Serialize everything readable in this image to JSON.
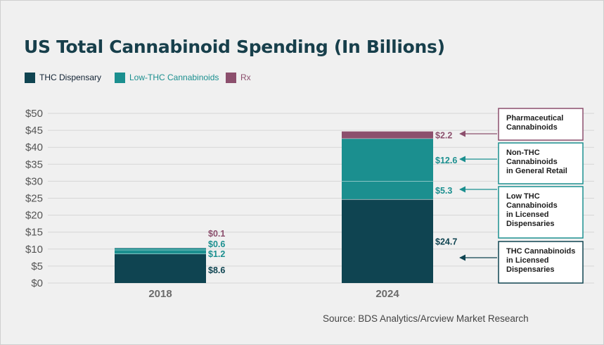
{
  "chart_data": {
    "type": "bar",
    "stacked": true,
    "title": "US Total Cannabinoid Spending (In Billions)",
    "source": "Source: BDS Analytics/Arcview Market Research",
    "categories": [
      "2018",
      "2024"
    ],
    "series": [
      {
        "name": "THC Dispensary",
        "color": "#0f4451",
        "values": [
          8.6,
          24.7
        ],
        "labels": [
          "$8.6",
          "$24.7"
        ]
      },
      {
        "name": "Low-THC Cannabinoids",
        "color": "#1b8f8f",
        "values": [
          1.2,
          5.3
        ],
        "labels": [
          "$1.2",
          "$5.3"
        ]
      },
      {
        "name": "Non-THC Cannabinoids",
        "color": "#1b8f8f",
        "values": [
          0.6,
          12.6
        ],
        "labels": [
          "$0.6",
          "$12.6"
        ]
      },
      {
        "name": "Rx",
        "color": "#8c4f6d",
        "values": [
          0.1,
          2.2
        ],
        "labels": [
          "$0.1",
          "$2.2"
        ]
      }
    ],
    "legend": [
      {
        "name": "THC Dispensary",
        "color": "#0f4451"
      },
      {
        "name": "Low-THC Cannabinoids",
        "color": "#1b8f8f"
      },
      {
        "name": "Rx",
        "color": "#8c4f6d"
      }
    ],
    "ylim": [
      0,
      50
    ],
    "yticks": [
      0,
      5,
      10,
      15,
      20,
      25,
      30,
      35,
      40,
      45,
      50
    ],
    "ytick_labels": [
      "$0",
      "$5",
      "$10",
      "$15",
      "$20",
      "$25",
      "$30",
      "$35",
      "$40",
      "$45",
      "$50"
    ],
    "grid": true,
    "legend_placement": "top-left",
    "annotations": [
      {
        "text": "Pharmaceutical\nCannabinoids",
        "series": "Rx",
        "color": "#8c4f6d"
      },
      {
        "text": "Non-THC\nCannabinoids\nin General Retail",
        "series": "Non-THC Cannabinoids",
        "color": "#1b8f8f"
      },
      {
        "text": "Low THC\nCannabinoids\nin Licensed\nDispensaries",
        "series": "Low-THC Cannabinoids",
        "color": "#1b8f8f"
      },
      {
        "text": "THC Cannabinoids\nin Licensed\nDispensaries",
        "series": "THC Dispensary",
        "color": "#0f4451"
      }
    ]
  }
}
